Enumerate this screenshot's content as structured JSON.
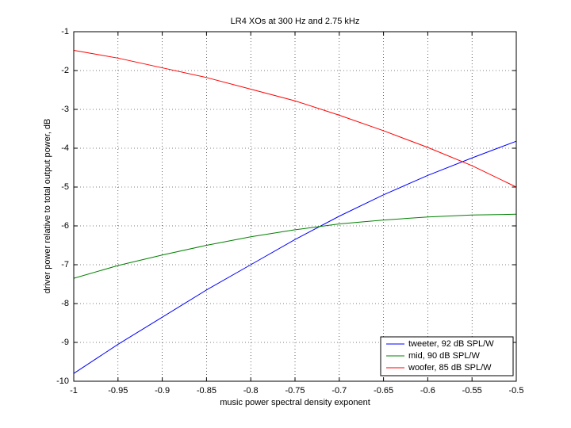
{
  "chart_data": {
    "type": "line",
    "title": "LR4 XOs at 300 Hz and 2.75 kHz",
    "x_label": "music power spectral density exponent",
    "y_label": "driver power relative to total output power, dB",
    "x": [
      -1,
      -0.95,
      -0.9,
      -0.85,
      -0.8,
      -0.75,
      -0.7,
      -0.65,
      -0.6,
      -0.55,
      -0.5
    ],
    "series": [
      {
        "name": "tweeter, 92 dB SPL/W",
        "color": "#0000ff",
        "values": [
          -9.8,
          -9.05,
          -8.35,
          -7.65,
          -7.0,
          -6.35,
          -5.75,
          -5.2,
          -4.7,
          -4.25,
          -3.82
        ]
      },
      {
        "name": "mid, 90 dB SPL/W",
        "color": "#008000",
        "values": [
          -7.35,
          -7.02,
          -6.75,
          -6.5,
          -6.28,
          -6.1,
          -5.95,
          -5.85,
          -5.77,
          -5.72,
          -5.7
        ]
      },
      {
        "name": "woofer, 85 dB SPL/W",
        "color": "#ff0000",
        "values": [
          -1.48,
          -1.68,
          -1.93,
          -2.18,
          -2.48,
          -2.78,
          -3.15,
          -3.55,
          -3.98,
          -4.45,
          -5.0
        ]
      }
    ],
    "xlim": [
      -1,
      -0.5
    ],
    "ylim": [
      -10,
      -1
    ],
    "xticks": [
      -1,
      -0.95,
      -0.9,
      -0.85,
      -0.8,
      -0.75,
      -0.7,
      -0.65,
      -0.6,
      -0.55,
      -0.5
    ],
    "yticks": [
      -10,
      -9,
      -8,
      -7,
      -6,
      -5,
      -4,
      -3,
      -2,
      -1
    ],
    "grid": true,
    "legend": "lower right"
  }
}
